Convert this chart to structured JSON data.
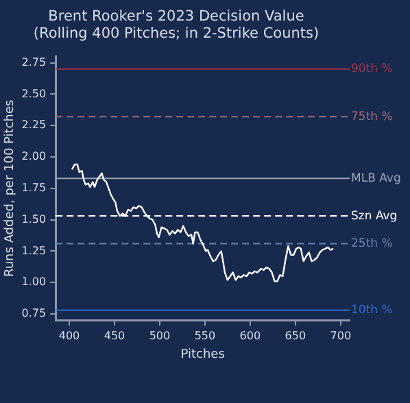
{
  "chart_data": {
    "type": "line",
    "title": "Brent Rooker's 2023 Decision Value",
    "subtitle": "(Rolling 400 Pitches; in 2-Strike Counts)",
    "xlabel": "Pitches",
    "ylabel": "Runs Added, per 100 Pitches",
    "x": [
      403,
      406,
      409,
      411,
      414,
      416,
      418,
      421,
      423,
      426,
      428,
      431,
      434,
      436,
      438,
      441,
      443,
      446,
      449,
      451,
      453,
      456,
      459,
      462,
      465,
      468,
      471,
      474,
      477,
      480,
      483,
      486,
      489,
      492,
      495,
      497,
      499,
      502,
      505,
      508,
      511,
      514,
      517,
      520,
      523,
      526,
      529,
      532,
      535,
      537,
      539,
      542,
      545,
      548,
      551,
      553,
      556,
      559,
      562,
      565,
      568,
      570,
      572,
      575,
      578,
      581,
      584,
      587,
      590,
      593,
      596,
      599,
      602,
      605,
      608,
      612,
      615,
      618,
      621,
      624,
      627,
      630,
      633,
      636,
      639,
      642,
      645,
      648,
      651,
      654,
      656,
      659,
      662,
      665,
      668,
      671,
      674,
      677,
      680,
      683,
      686,
      689,
      692
    ],
    "series": [
      {
        "color": "#ffffff",
        "values": [
          1.9,
          1.94,
          1.94,
          1.88,
          1.89,
          1.82,
          1.78,
          1.79,
          1.76,
          1.8,
          1.76,
          1.82,
          1.85,
          1.87,
          1.82,
          1.8,
          1.76,
          1.7,
          1.66,
          1.64,
          1.57,
          1.53,
          1.55,
          1.53,
          1.58,
          1.57,
          1.6,
          1.59,
          1.61,
          1.6,
          1.56,
          1.53,
          1.51,
          1.5,
          1.46,
          1.39,
          1.36,
          1.44,
          1.43,
          1.42,
          1.38,
          1.41,
          1.39,
          1.42,
          1.4,
          1.45,
          1.4,
          1.37,
          1.38,
          1.31,
          1.4,
          1.4,
          1.34,
          1.3,
          1.25,
          1.26,
          1.21,
          1.17,
          1.18,
          1.22,
          1.25,
          1.17,
          1.08,
          1.02,
          1.05,
          1.08,
          1.02,
          1.05,
          1.04,
          1.06,
          1.05,
          1.08,
          1.07,
          1.09,
          1.08,
          1.11,
          1.1,
          1.12,
          1.11,
          1.08,
          1.01,
          1.01,
          1.06,
          1.05,
          1.18,
          1.29,
          1.22,
          1.22,
          1.27,
          1.28,
          1.27,
          1.17,
          1.21,
          1.24,
          1.17,
          1.18,
          1.2,
          1.24,
          1.26,
          1.27,
          1.28,
          1.26,
          1.27
        ]
      }
    ],
    "xlim": [
      385,
      710
    ],
    "xticks": [
      400,
      450,
      500,
      550,
      600,
      650,
      700
    ],
    "ylim": [
      0.7,
      2.8
    ],
    "yticks": [
      {
        "value": 0.75,
        "label": "0.75"
      },
      {
        "value": 1.0,
        "label": "1.00"
      },
      {
        "value": 1.25,
        "label": "1.25"
      },
      {
        "value": 1.5,
        "label": "1.50"
      },
      {
        "value": 1.75,
        "label": "1.75"
      },
      {
        "value": 2.0,
        "label": "2.00"
      },
      {
        "value": 2.25,
        "label": "2.25"
      },
      {
        "value": 2.5,
        "label": "2.50"
      },
      {
        "value": 2.75,
        "label": "2.75"
      }
    ],
    "ref_lines": [
      {
        "axis": "y",
        "value": 2.7,
        "label": "90th %",
        "color": "#a03345",
        "line_style": "solid"
      },
      {
        "axis": "y",
        "value": 2.32,
        "label": "75th %",
        "color": "#a3687a",
        "line_style": "dashed"
      },
      {
        "axis": "y",
        "value": 1.83,
        "label": "MLB Avg",
        "color": "#9aa3b5",
        "line_style": "solid"
      },
      {
        "axis": "y",
        "value": 1.53,
        "label": "Szn Avg",
        "color": "#ffffff",
        "line_style": "dashed"
      },
      {
        "axis": "y",
        "value": 1.31,
        "label": "25th %",
        "color": "#6680ae",
        "line_style": "dashed"
      },
      {
        "axis": "y",
        "value": 0.78,
        "label": "10th %",
        "color": "#2f6ac8",
        "line_style": "solid"
      }
    ],
    "grid": false,
    "legend": false,
    "marker": "none",
    "line_style": "solid"
  }
}
